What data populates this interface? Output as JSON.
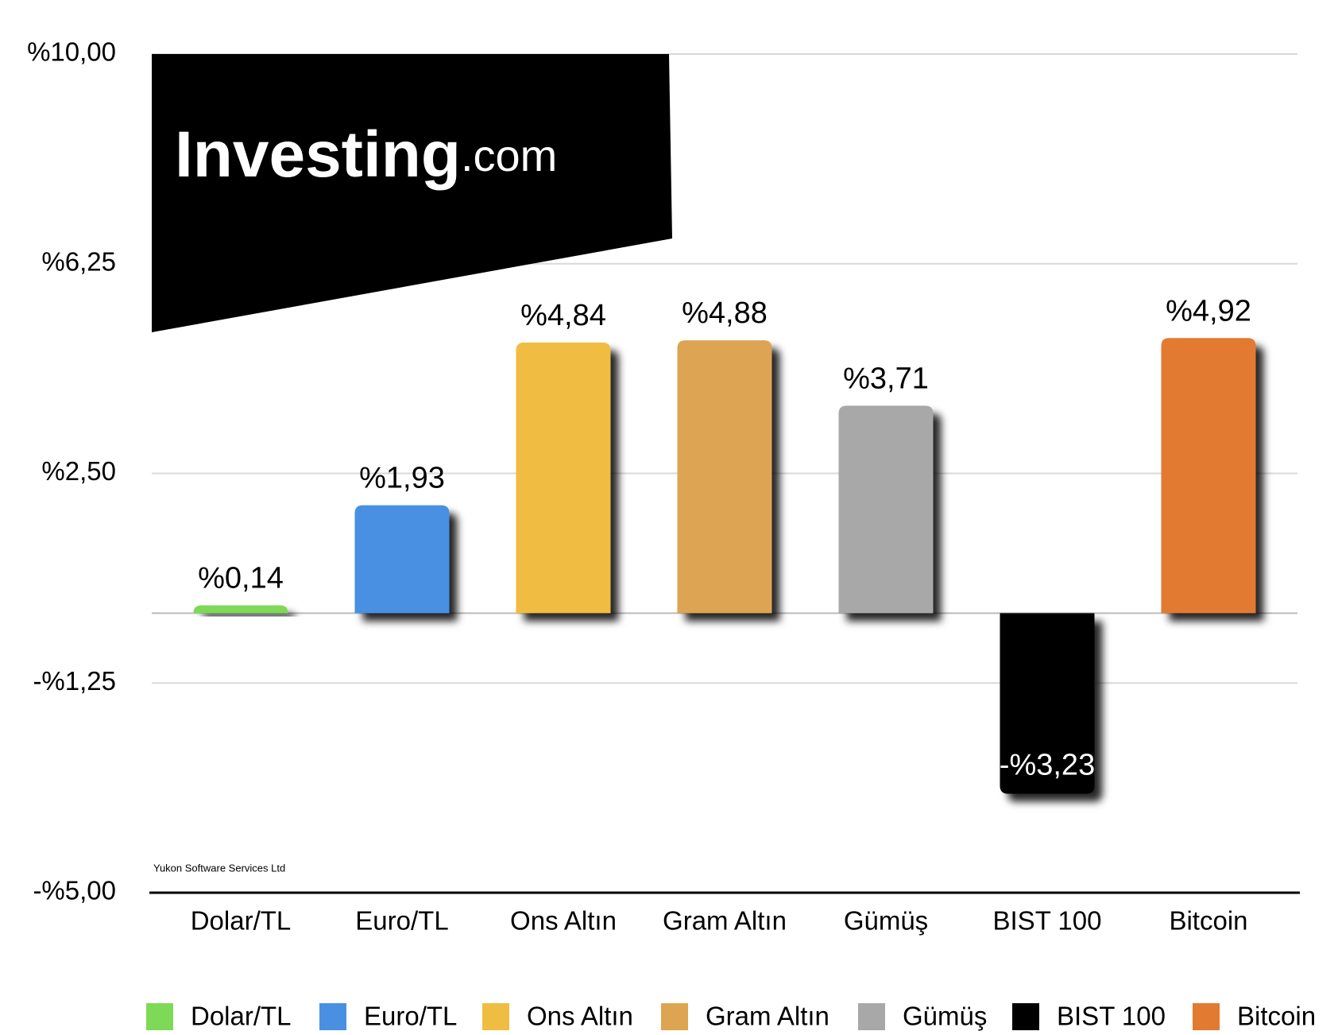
{
  "chart_data": {
    "type": "bar",
    "categories": [
      "Dolar/TL",
      "Euro/TL",
      "Ons Altın",
      "Gram Altın",
      "Gümüş",
      "BIST 100",
      "Bitcoin"
    ],
    "values": [
      0.14,
      1.93,
      4.84,
      4.88,
      3.71,
      -3.23,
      4.92
    ],
    "value_labels": [
      "%0,14",
      "%1,93",
      "%4,84",
      "%4,88",
      "%3,71",
      "-%3,23",
      "%4,92"
    ],
    "colors": [
      "#7ed957",
      "#4a90e2",
      "#f0bd43",
      "#dda452",
      "#a8a8a8",
      "#000000",
      "#e27a31"
    ],
    "ylim": [
      -5,
      10
    ],
    "yticks": [
      {
        "value": -5,
        "label": "-%5,00"
      },
      {
        "value": -1.25,
        "label": "-%1,25"
      },
      {
        "value": 2.5,
        "label": "%2,50"
      },
      {
        "value": 6.25,
        "label": "%6,25"
      },
      {
        "value": 10,
        "label": "%10,00"
      }
    ],
    "grid": true,
    "legend": "bottom",
    "logo": {
      "name": "Investing",
      "suffix": ".com"
    },
    "credit": "Yukon Software Services Ltd"
  }
}
